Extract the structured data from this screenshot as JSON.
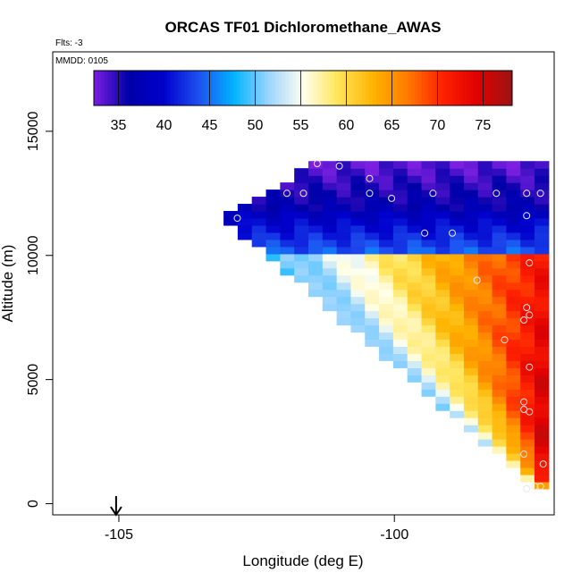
{
  "chart_data": {
    "type": "heatmap",
    "title": "ORCAS TF01 Dichloromethane_AWAS",
    "flights_note": "Flts: -3",
    "date_note": "MMDD: 0105",
    "xlabel": "Longitude (deg E)",
    "ylabel": "Altitude (m)",
    "xlim": [
      -106.2,
      -97.1
    ],
    "ylim": [
      -450,
      18200
    ],
    "x_ticks": [
      -105,
      -100
    ],
    "x_tick_labels": [
      "-105",
      "-100"
    ],
    "y_ticks": [
      0,
      5000,
      10000,
      15000
    ],
    "y_tick_labels": [
      "0",
      "5000",
      "10000",
      "15000"
    ],
    "colorbar": {
      "min": 32.3,
      "max": 78.2,
      "ticks": [
        35,
        40,
        45,
        50,
        55,
        60,
        65,
        70,
        75
      ],
      "tick_labels": [
        "35",
        "40",
        "45",
        "50",
        "55",
        "60",
        "65",
        "70",
        "75"
      ],
      "colors": [
        "#7b1fe0",
        "#0000a8",
        "#0000cd",
        "#1f4fef",
        "#00b2ff",
        "#99d4ff",
        "#ffffee",
        "#ffe55a",
        "#ffb300",
        "#ff7a00",
        "#ff2200",
        "#e00000",
        "#9c1414"
      ]
    },
    "field": {
      "x_start": -103.1,
      "x_end": -97.2,
      "y_min": 600,
      "y_max": 13800,
      "tip_altitude": 11500,
      "description_values": "interpolated mixing ratio, low near aircraft ceiling, high at low altitude near -97.5"
    },
    "sample_points": [
      {
        "x": -101.4,
        "y": 13700
      },
      {
        "x": -101.0,
        "y": 13600
      },
      {
        "x": -100.45,
        "y": 13100
      },
      {
        "x": -102.85,
        "y": 11500
      },
      {
        "x": -101.95,
        "y": 12500
      },
      {
        "x": -101.65,
        "y": 12500
      },
      {
        "x": -100.45,
        "y": 12500
      },
      {
        "x": -100.05,
        "y": 12300
      },
      {
        "x": -99.3,
        "y": 12500
      },
      {
        "x": -98.15,
        "y": 12500
      },
      {
        "x": -97.6,
        "y": 12500
      },
      {
        "x": -97.35,
        "y": 12500
      },
      {
        "x": -97.6,
        "y": 11600
      },
      {
        "x": -99.45,
        "y": 10900
      },
      {
        "x": -98.95,
        "y": 10900
      },
      {
        "x": -97.55,
        "y": 9700
      },
      {
        "x": -98.5,
        "y": 9000
      },
      {
        "x": -97.6,
        "y": 7900
      },
      {
        "x": -97.55,
        "y": 7600
      },
      {
        "x": -97.65,
        "y": 7400
      },
      {
        "x": -98.0,
        "y": 6600
      },
      {
        "x": -97.55,
        "y": 5500
      },
      {
        "x": -97.65,
        "y": 4100
      },
      {
        "x": -97.65,
        "y": 3800
      },
      {
        "x": -97.55,
        "y": 3700
      },
      {
        "x": -97.65,
        "y": 2000
      },
      {
        "x": -97.3,
        "y": 1600
      },
      {
        "x": -97.45,
        "y": 700
      },
      {
        "x": -97.35,
        "y": 700
      },
      {
        "x": -97.6,
        "y": 600
      }
    ],
    "arrow_longitude": -105.05
  }
}
